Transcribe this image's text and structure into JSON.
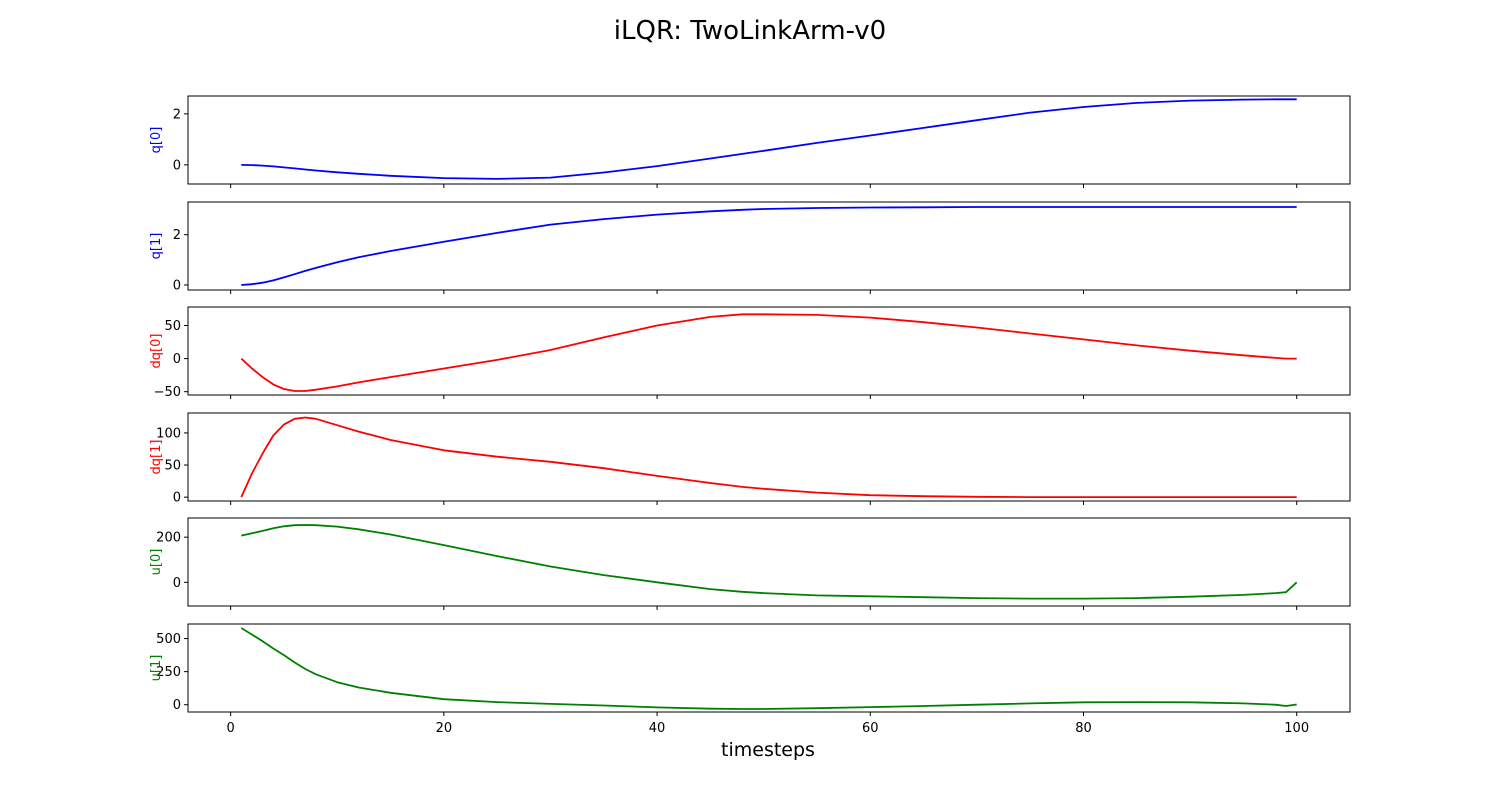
{
  "chart_data": {
    "type": "line",
    "title": "iLQR: TwoLinkArm-v0",
    "xlabel": "timesteps",
    "xlim": [
      -4,
      105
    ],
    "xticks": [
      0,
      20,
      40,
      60,
      80,
      100
    ],
    "grid": false,
    "x": [
      1,
      2,
      3,
      4,
      5,
      6,
      7,
      8,
      10,
      12,
      15,
      20,
      25,
      30,
      35,
      40,
      45,
      48,
      50,
      55,
      60,
      65,
      70,
      75,
      80,
      85,
      90,
      95,
      98,
      99,
      100
    ],
    "panels": [
      {
        "name": "q[0]",
        "ylabel": "q[0]",
        "color": "#0000ff",
        "ylim": [
          -0.75,
          2.7
        ],
        "yticks": [
          0,
          2
        ],
        "values": [
          0.0,
          -0.01,
          -0.03,
          -0.06,
          -0.1,
          -0.14,
          -0.18,
          -0.22,
          -0.29,
          -0.35,
          -0.43,
          -0.52,
          -0.55,
          -0.5,
          -0.3,
          -0.05,
          0.25,
          0.43,
          0.55,
          0.86,
          1.15,
          1.45,
          1.75,
          2.05,
          2.27,
          2.43,
          2.52,
          2.56,
          2.57,
          2.57,
          2.57
        ]
      },
      {
        "name": "q[1]",
        "ylabel": "q[1]",
        "color": "#0000ff",
        "ylim": [
          -0.2,
          3.3
        ],
        "yticks": [
          0,
          2
        ],
        "values": [
          0.0,
          0.03,
          0.09,
          0.18,
          0.3,
          0.43,
          0.56,
          0.68,
          0.9,
          1.1,
          1.35,
          1.72,
          2.07,
          2.4,
          2.62,
          2.8,
          2.93,
          2.99,
          3.02,
          3.06,
          3.08,
          3.09,
          3.1,
          3.1,
          3.1,
          3.1,
          3.1,
          3.1,
          3.1,
          3.1,
          3.1
        ]
      },
      {
        "name": "dq[0]",
        "ylabel": "dq[0]",
        "color": "#ff0000",
        "ylim": [
          -55,
          78
        ],
        "yticks": [
          -50,
          0,
          50
        ],
        "values": [
          0.0,
          -15,
          -28,
          -39,
          -46,
          -49,
          -49,
          -47,
          -42,
          -36,
          -28,
          -15,
          -2,
          13,
          32,
          50,
          63,
          67,
          67,
          66,
          62,
          55,
          47,
          38,
          29,
          20,
          12,
          5,
          1,
          0,
          0
        ]
      },
      {
        "name": "dq[1]",
        "ylabel": "dq[1]",
        "color": "#ff0000",
        "ylim": [
          -6,
          131
        ],
        "yticks": [
          0,
          50,
          100
        ],
        "values": [
          0.0,
          37,
          68,
          96,
          113,
          122,
          124,
          122,
          112,
          102,
          89,
          73,
          63,
          55,
          45,
          33,
          22,
          16,
          13,
          7,
          3,
          1.5,
          0.5,
          0,
          0,
          0,
          0,
          0,
          0,
          0,
          0
        ]
      },
      {
        "name": "u[0]",
        "ylabel": "u[0]",
        "color": "#008000",
        "ylim": [
          -105,
          285
        ],
        "yticks": [
          0,
          200
        ],
        "values": [
          207,
          217,
          228,
          240,
          248,
          253,
          254,
          253,
          247,
          235,
          212,
          165,
          116,
          70,
          32,
          0,
          -30,
          -42,
          -48,
          -58,
          -62,
          -66,
          -70,
          -72,
          -72,
          -70,
          -64,
          -56,
          -48,
          -44,
          0
        ]
      },
      {
        "name": "u[1]",
        "ylabel": "u[1]",
        "color": "#008000",
        "ylim": [
          -55,
          610
        ],
        "yticks": [
          0,
          250,
          500
        ],
        "values": [
          580,
          530,
          480,
          425,
          375,
          320,
          270,
          230,
          170,
          130,
          90,
          42,
          20,
          6,
          -6,
          -20,
          -30,
          -32,
          -32,
          -26,
          -18,
          -10,
          0,
          10,
          18,
          20,
          18,
          10,
          0,
          -10,
          2
        ]
      }
    ]
  }
}
